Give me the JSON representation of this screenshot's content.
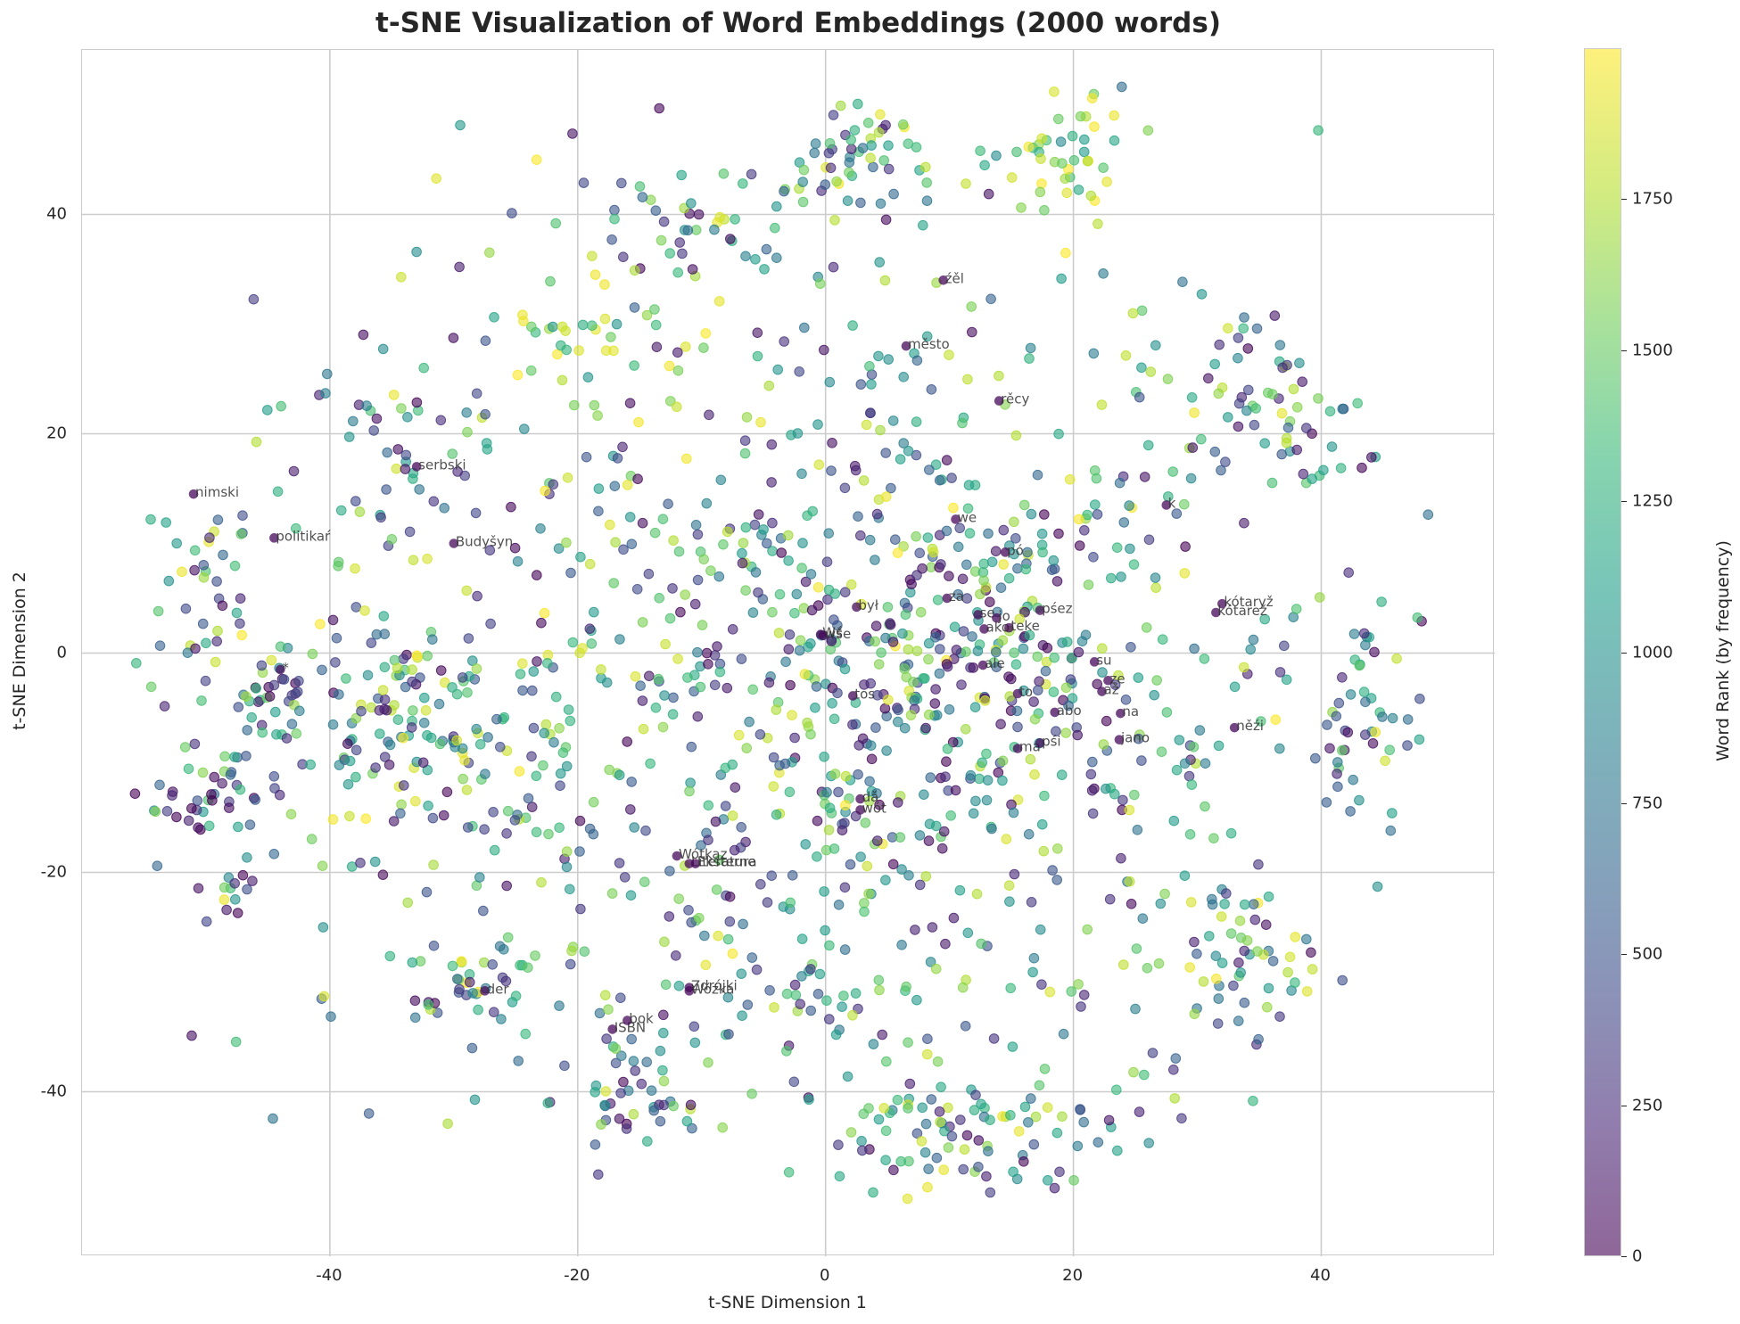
{
  "chart_data": {
    "type": "scatter",
    "title": "t-SNE Visualization of Word Embeddings (2000 words)",
    "xlabel": "t-SNE Dimension 1",
    "ylabel": "t-SNE Dimension 2",
    "xlim": [
      -60,
      54
    ],
    "ylim": [
      -55,
      55
    ],
    "xticks": [
      -40,
      -20,
      0,
      20,
      40
    ],
    "yticks": [
      -40,
      -20,
      0,
      20,
      40
    ],
    "grid": true,
    "n_points": 2000,
    "colormap": "viridis",
    "alpha": 0.6,
    "colorbar": {
      "label": "Word Rank (by frequency)",
      "range": [
        0,
        2000
      ],
      "ticks": [
        0,
        250,
        500,
        750,
        1000,
        1250,
        1500,
        1750
      ]
    },
    "clusters": [
      {
        "cx": 3,
        "cy": 45,
        "sx": 3,
        "sy": 3,
        "n": 55,
        "rank": "mixed"
      },
      {
        "cx": 19,
        "cy": 45,
        "sx": 3,
        "sy": 2.5,
        "n": 45,
        "rank": "high"
      },
      {
        "cx": -11,
        "cy": 38,
        "sx": 5,
        "sy": 4,
        "n": 40,
        "rank": "mixed"
      },
      {
        "cx": -20,
        "cy": 30,
        "sx": 3,
        "sy": 3,
        "n": 25,
        "rank": "high"
      },
      {
        "cx": -49,
        "cy": -13,
        "sx": 2.5,
        "sy": 1.5,
        "n": 40,
        "rank": "low"
      },
      {
        "cx": -48,
        "cy": -21,
        "sx": 1.5,
        "sy": 1.5,
        "n": 15,
        "rank": "low"
      },
      {
        "cx": -45,
        "cy": -4,
        "sx": 2,
        "sy": 1.2,
        "n": 20,
        "rank": "low"
      },
      {
        "cx": -50,
        "cy": 5,
        "sx": 3,
        "sy": 5,
        "n": 50,
        "rank": "mixed"
      },
      {
        "cx": -28,
        "cy": -30,
        "sx": 3.5,
        "sy": 2.5,
        "n": 40,
        "rank": "mixed"
      },
      {
        "cx": -16,
        "cy": -40,
        "sx": 2.5,
        "sy": 3,
        "n": 40,
        "rank": "mixed"
      },
      {
        "cx": 12,
        "cy": -44,
        "sx": 8,
        "sy": 3,
        "n": 90,
        "rank": "mixed"
      },
      {
        "cx": 34,
        "cy": -28,
        "sx": 3.5,
        "sy": 3.5,
        "n": 55,
        "rank": "mixed"
      },
      {
        "cx": 43,
        "cy": -5,
        "sx": 2.5,
        "sy": 5,
        "n": 50,
        "rank": "mixed"
      },
      {
        "cx": 36,
        "cy": 22,
        "sx": 4,
        "sy": 4,
        "n": 60,
        "rank": "mixed"
      },
      {
        "cx": 0,
        "cy": 0,
        "sx": 22,
        "sy": 20,
        "n": 900,
        "rank": "mixed"
      },
      {
        "cx": -32,
        "cy": -8,
        "sx": 6,
        "sy": 6,
        "n": 130,
        "rank": "mixed"
      },
      {
        "cx": 12,
        "cy": 0,
        "sx": 8,
        "sy": 8,
        "n": 180,
        "rank": "low"
      },
      {
        "cx": -34,
        "cy": 20,
        "sx": 3,
        "sy": 3,
        "n": 30,
        "rank": "mixed"
      },
      {
        "cx": 0,
        "cy": -28,
        "sx": 10,
        "sy": 8,
        "n": 80,
        "rank": "mixed"
      }
    ],
    "annotations": [
      {
        "word": "nimski",
        "x": -51,
        "y": 14.5
      },
      {
        "word": "serbski",
        "x": -33,
        "y": 17
      },
      {
        "word": "politikaŕ",
        "x": -44.5,
        "y": 10.5
      },
      {
        "word": "Budyšyn",
        "x": -30,
        "y": 10
      },
      {
        "word": "*",
        "x": -44,
        "y": -1.5
      },
      {
        "word": "źěl",
        "x": 9.5,
        "y": 34
      },
      {
        "word": "město",
        "x": 6.5,
        "y": 28
      },
      {
        "word": "rěcy",
        "x": 14,
        "y": 23
      },
      {
        "word": "we",
        "x": 10.5,
        "y": 12.2
      },
      {
        "word": "pó",
        "x": 14.5,
        "y": 9.2
      },
      {
        "word": "k",
        "x": 27.5,
        "y": 13.5
      },
      {
        "word": "był",
        "x": 2.5,
        "y": 4.2
      },
      {
        "word": "za",
        "x": 9.8,
        "y": 5
      },
      {
        "word": "se",
        "x": 12.3,
        "y": 3.5
      },
      {
        "word": "jo",
        "x": 13.8,
        "y": 3.2
      },
      {
        "word": "ako",
        "x": 12.8,
        "y": 2.2
      },
      {
        "word": "teke",
        "x": 14.8,
        "y": 2.3
      },
      {
        "word": "pśez",
        "x": 17.3,
        "y": 3.9
      },
      {
        "word": "Wś",
        "x": -0.4,
        "y": 1.7
      },
      {
        "word": "wše",
        "x": -0.2,
        "y": 1.6
      },
      {
        "word": "ale",
        "x": 12.7,
        "y": -1.1
      },
      {
        "word": "su",
        "x": 21.7,
        "y": -0.8
      },
      {
        "word": "ze",
        "x": 22.8,
        "y": -2.5
      },
      {
        "word": "až",
        "x": 22.3,
        "y": -3.5
      },
      {
        "word": "to",
        "x": 15.5,
        "y": -3.7
      },
      {
        "word": "tos",
        "x": 2.2,
        "y": -3.9
      },
      {
        "word": "abo",
        "x": 18.5,
        "y": -5.4
      },
      {
        "word": "na",
        "x": 23.8,
        "y": -5.5
      },
      {
        "word": "jano",
        "x": 23.7,
        "y": -7.9
      },
      {
        "word": "ma",
        "x": 15.5,
        "y": -8.7
      },
      {
        "word": "pśi",
        "x": 17.3,
        "y": -8.2
      },
      {
        "word": "kótaryž",
        "x": 32,
        "y": 4.5
      },
      {
        "word": "kótarež",
        "x": 31.5,
        "y": 3.7
      },
      {
        "word": "něźi",
        "x": 33,
        "y": -6.8
      },
      {
        "word": "dǎ",
        "x": 2.8,
        "y": -13.3
      },
      {
        "word": "wót",
        "x": 2.8,
        "y": -14.3
      },
      {
        "word": "Wótkaz",
        "x": -12,
        "y": -18.5
      },
      {
        "word": "Literatura",
        "x": -11,
        "y": -19.2
      },
      {
        "word": "Eksterne",
        "x": -10.5,
        "y": -19.2
      },
      {
        "word": "der",
        "x": -27.5,
        "y": -30.8
      },
      {
        "word": "ISBN",
        "x": -17.2,
        "y": -34.3
      },
      {
        "word": "bok",
        "x": -16,
        "y": -33.5
      },
      {
        "word": "Zdrójki",
        "x": -11,
        "y": -30.5
      },
      {
        "word": "Wóźka",
        "x": -11,
        "y": -30.8
      }
    ]
  }
}
